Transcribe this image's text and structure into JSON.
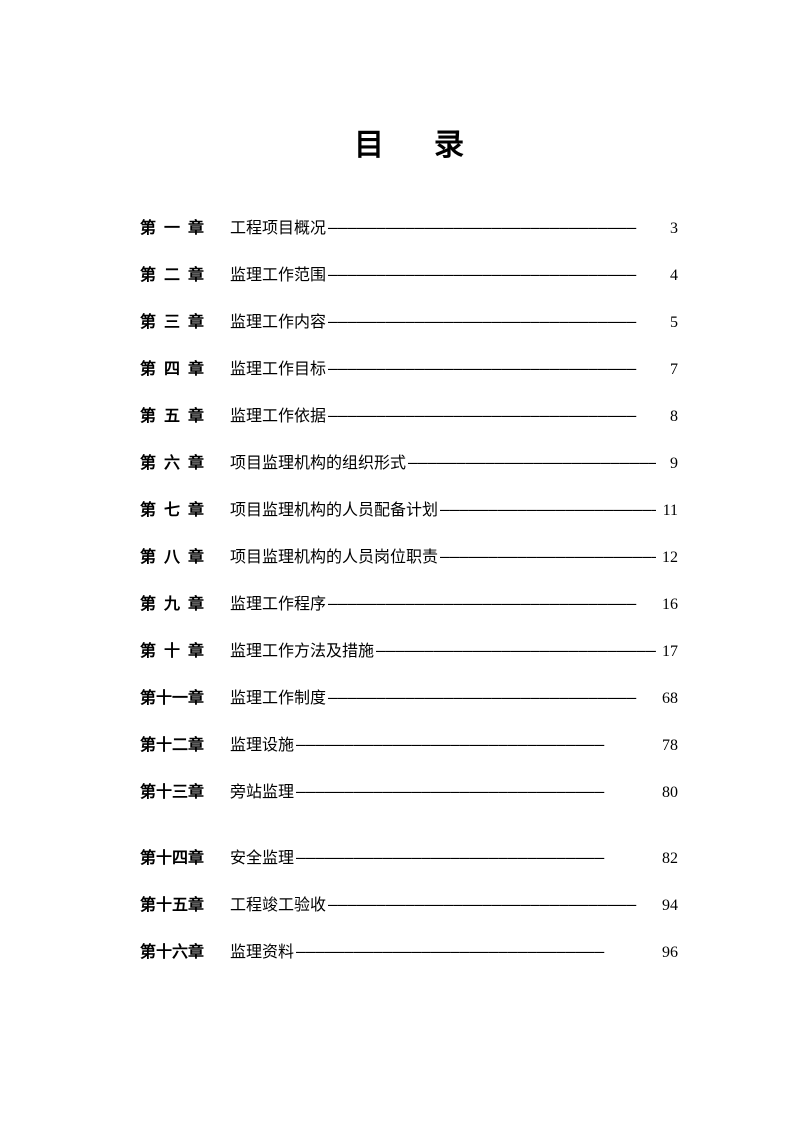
{
  "title": "目录",
  "entries": [
    {
      "chapter": "第 一 章",
      "title": "工程项目概况",
      "page": "3",
      "tight": false,
      "extraGap": false
    },
    {
      "chapter": "第 二 章",
      "title": "监理工作范围",
      "page": "4",
      "tight": false,
      "extraGap": false
    },
    {
      "chapter": "第 三 章",
      "title": "监理工作内容",
      "page": "5",
      "tight": false,
      "extraGap": false
    },
    {
      "chapter": "第 四 章",
      "title": "监理工作目标",
      "page": "7",
      "tight": false,
      "extraGap": false
    },
    {
      "chapter": "第 五 章",
      "title": "监理工作依据",
      "page": "8",
      "tight": false,
      "extraGap": false
    },
    {
      "chapter": "第 六 章",
      "title": "项目监理机构的组织形式",
      "page": "9",
      "tight": false,
      "extraGap": false
    },
    {
      "chapter": "第 七 章",
      "title": "项目监理机构的人员配备计划",
      "page": "11",
      "tight": false,
      "extraGap": false
    },
    {
      "chapter": "第 八 章",
      "title": "项目监理机构的人员岗位职责",
      "page": "12",
      "tight": false,
      "extraGap": false
    },
    {
      "chapter": "第 九 章",
      "title": "监理工作程序",
      "page": "16",
      "tight": false,
      "extraGap": false
    },
    {
      "chapter": "第 十 章",
      "title": "监理工作方法及措施",
      "page": "17",
      "tight": false,
      "extraGap": false
    },
    {
      "chapter": "第十一章",
      "title": "监理工作制度",
      "page": "68",
      "tight": true,
      "extraGap": false
    },
    {
      "chapter": "第十二章",
      "title": "监理设施",
      "page": "78",
      "tight": true,
      "extraGap": false
    },
    {
      "chapter": "第十三章",
      "title": "旁站监理",
      "page": "80",
      "tight": true,
      "extraGap": false
    },
    {
      "chapter": "第十四章",
      "title": "安全监理",
      "page": "82",
      "tight": true,
      "extraGap": true
    },
    {
      "chapter": "第十五章",
      "title": "工程竣工验收",
      "page": "94",
      "tight": true,
      "extraGap": false
    },
    {
      "chapter": "第十六章",
      "title": "监理资料",
      "page": "96",
      "tight": true,
      "extraGap": false
    }
  ]
}
